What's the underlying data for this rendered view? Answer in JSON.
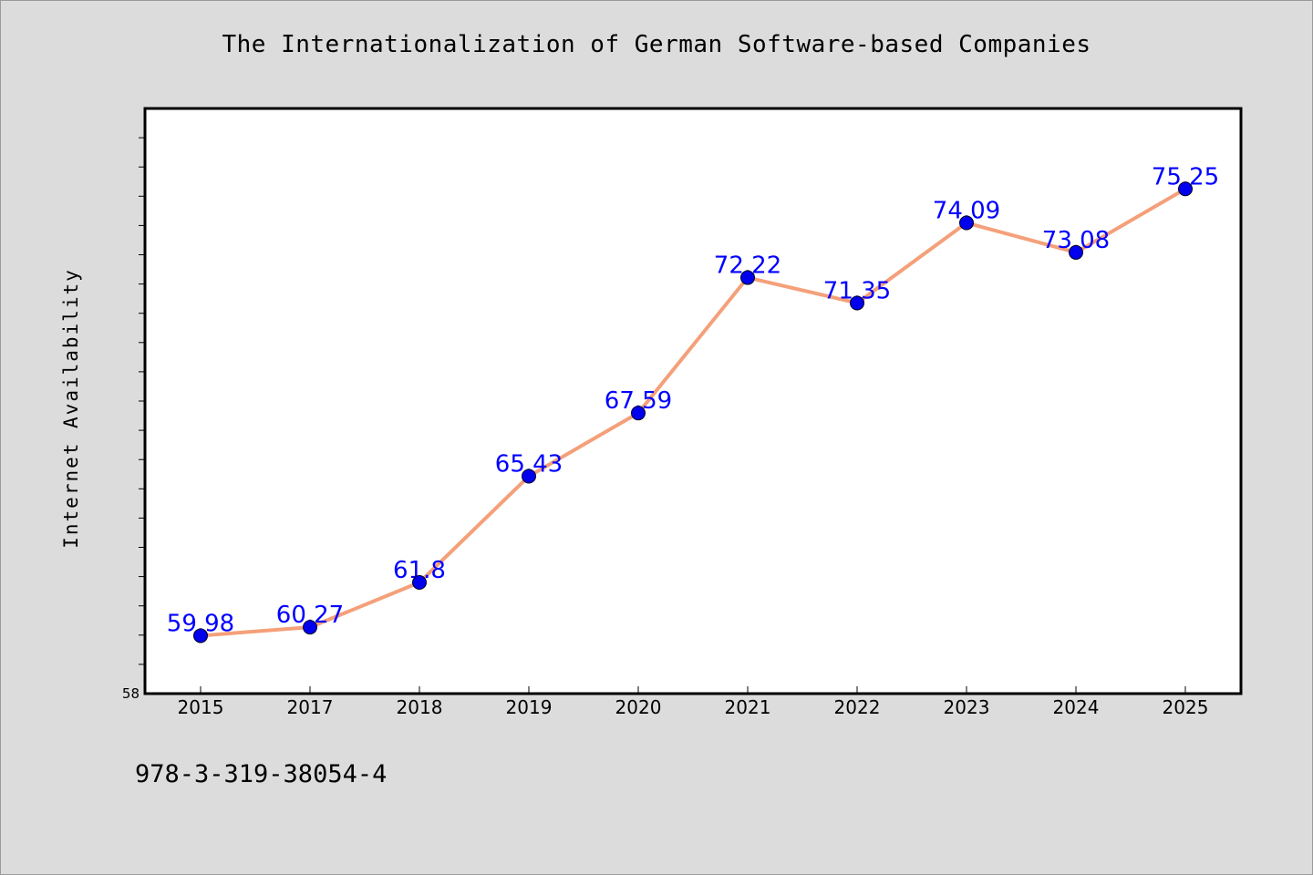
{
  "chart_data": {
    "type": "line",
    "title": "The Internationalization of German Software-based Companies",
    "xlabel": "",
    "ylabel": "Internet Availability",
    "categories": [
      "2015",
      "2017",
      "2018",
      "2019",
      "2020",
      "2021",
      "2022",
      "2023",
      "2024",
      "2025"
    ],
    "series": [
      {
        "values": [
          59.98,
          60.27,
          61.8,
          65.43,
          67.59,
          72.22,
          71.35,
          74.09,
          73.08,
          75.25
        ],
        "labels": [
          "59.98",
          "60.27",
          "61.8",
          "65.43",
          "67.59",
          "72.22",
          "71.35",
          "74.09",
          "73.08",
          "75.25"
        ],
        "line_color": "#f4a07a",
        "marker_color": "#0000ee"
      }
    ],
    "ylim": [
      58,
      78
    ],
    "y_tick_labels": [
      "58"
    ],
    "grid": false,
    "label_color": "#0000ff"
  },
  "footer": "978-3-319-38054-4"
}
